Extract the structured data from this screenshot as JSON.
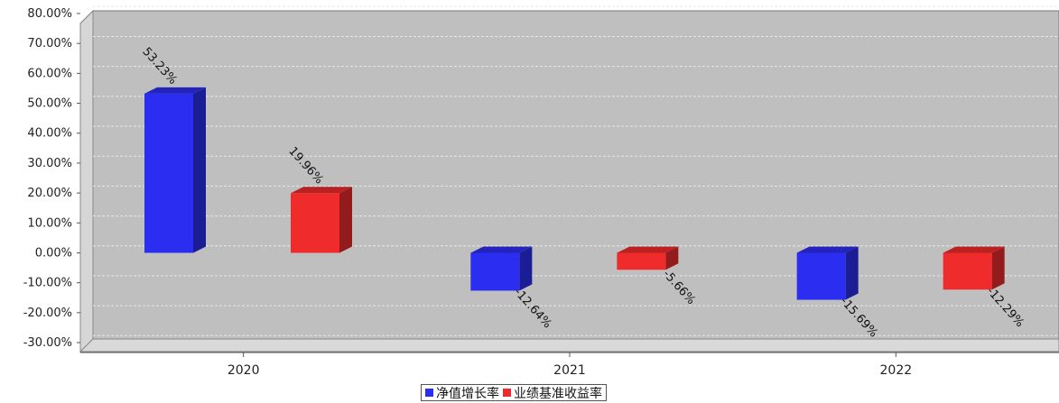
{
  "chart_data": {
    "type": "bar",
    "categories": [
      "2020",
      "2021",
      "2022"
    ],
    "series": [
      {
        "name": "净值增长率",
        "values": [
          53.23,
          -12.64,
          -15.69
        ],
        "labels": [
          "53.23%",
          "-12.64%",
          "-15.69%"
        ],
        "color": "#2b2ef0"
      },
      {
        "name": "业绩基准收益率",
        "values": [
          19.96,
          -5.66,
          -12.29
        ],
        "labels": [
          "19.96%",
          "-5.66%",
          "-12.29%"
        ],
        "color": "#ef2b2b"
      }
    ],
    "yticks": [
      "80.00%",
      "70.00%",
      "60.00%",
      "50.00%",
      "40.00%",
      "30.00%",
      "20.00%",
      "10.00%",
      "0.00%",
      "-10.00%",
      "-20.00%",
      "-30.00%"
    ],
    "ylim": [
      -30,
      80
    ],
    "grid": true,
    "legend_position": "bottom-center",
    "plot_background": "#bfbfbf"
  }
}
